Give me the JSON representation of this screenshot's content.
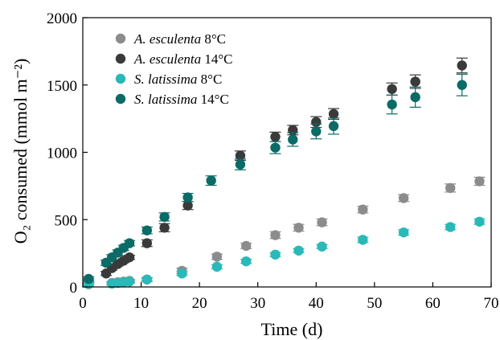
{
  "chart_data": {
    "type": "scatter",
    "title": "",
    "xlabel": "Time (d)",
    "ylabel": "O₂ consumed (mmol m⁻²)",
    "xlim": [
      0,
      70
    ],
    "ylim": [
      0,
      2000
    ],
    "xticks": [
      0,
      10,
      20,
      30,
      40,
      50,
      60,
      70
    ],
    "yticks": [
      0,
      500,
      1000,
      1500,
      2000
    ],
    "grid": false,
    "legend_position": "top-left",
    "error_bars": true,
    "series": [
      {
        "name": "A. esculenta 8°C",
        "legend_species": "A. esculenta",
        "legend_temp": " 8°C",
        "color": "#8c8c8c",
        "x": [
          1,
          5,
          6,
          7,
          8,
          11,
          17,
          23,
          28,
          33,
          37,
          41,
          48,
          55,
          63,
          68
        ],
        "y": [
          20,
          30,
          35,
          40,
          45,
          55,
          120,
          225,
          305,
          385,
          440,
          480,
          575,
          660,
          735,
          785
        ],
        "err": [
          15,
          10,
          10,
          10,
          10,
          15,
          20,
          20,
          20,
          25,
          25,
          25,
          25,
          25,
          30,
          30
        ]
      },
      {
        "name": "A. esculenta 14°C",
        "legend_species": "A. esculenta",
        "legend_temp": " 14°C",
        "color": "#3a3a3a",
        "x": [
          1,
          4,
          5,
          6,
          7,
          8,
          11,
          14,
          18,
          27,
          33,
          36,
          40,
          43,
          53,
          57,
          65
        ],
        "y": [
          45,
          100,
          140,
          170,
          195,
          220,
          325,
          440,
          605,
          975,
          1115,
          1165,
          1225,
          1285,
          1470,
          1525,
          1645
        ],
        "err": [
          15,
          15,
          15,
          15,
          15,
          15,
          25,
          30,
          30,
          35,
          35,
          35,
          40,
          40,
          45,
          50,
          55
        ]
      },
      {
        "name": "S. latissima 8°C",
        "legend_species": "S. latissima",
        "legend_temp": " 8°C",
        "color": "#2ab8b8",
        "x": [
          1,
          5,
          6,
          7,
          8,
          11,
          17,
          23,
          28,
          33,
          37,
          41,
          48,
          55,
          63,
          68
        ],
        "y": [
          25,
          25,
          30,
          35,
          40,
          55,
          100,
          150,
          190,
          240,
          270,
          300,
          350,
          405,
          445,
          485
        ],
        "err": [
          10,
          10,
          10,
          10,
          10,
          10,
          15,
          15,
          15,
          15,
          15,
          15,
          20,
          20,
          20,
          20
        ]
      },
      {
        "name": "S. latissima 14°C",
        "legend_species": "S. latissima",
        "legend_temp": " 14°C",
        "color": "#0b6b66",
        "x": [
          1,
          4,
          5,
          6,
          7,
          8,
          11,
          14,
          18,
          22,
          27,
          33,
          36,
          40,
          43,
          53,
          57,
          65
        ],
        "y": [
          60,
          180,
          220,
          255,
          290,
          325,
          420,
          520,
          665,
          790,
          910,
          1035,
          1095,
          1155,
          1195,
          1355,
          1410,
          1500
        ],
        "err": [
          15,
          20,
          20,
          20,
          20,
          20,
          25,
          30,
          30,
          35,
          40,
          45,
          50,
          55,
          60,
          70,
          75,
          80
        ]
      }
    ]
  }
}
